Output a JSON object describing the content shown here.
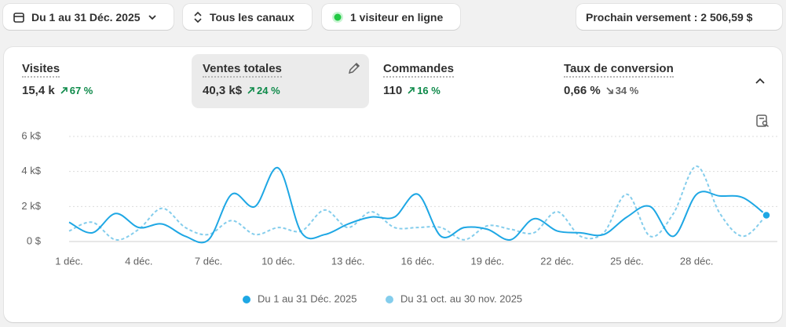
{
  "header": {
    "date_range": "Du 1 au 31 Déc. 2025",
    "channels": "Tous les canaux",
    "visitors": "1 visiteur en ligne",
    "payout": "Prochain versement : 2 506,59 $"
  },
  "metrics": [
    {
      "label": "Visites",
      "value": "15,4 k",
      "change": "67 %",
      "trend": "up"
    },
    {
      "label": "Ventes totales",
      "value": "40,3 k$",
      "change": "24 %",
      "trend": "up"
    },
    {
      "label": "Commandes",
      "value": "110",
      "change": "16 %",
      "trend": "up"
    },
    {
      "label": "Taux de conversion",
      "value": "0,66 %",
      "change": "34 %",
      "trend": "down"
    }
  ],
  "chart_data": {
    "type": "line",
    "categories": [
      "1 déc.",
      null,
      null,
      "4 déc.",
      null,
      null,
      "7 déc.",
      null,
      null,
      "10 déc.",
      null,
      null,
      "13 déc.",
      null,
      null,
      "16 déc.",
      null,
      null,
      "19 déc.",
      null,
      null,
      "22 déc.",
      null,
      null,
      "25 déc.",
      null,
      null,
      "28 déc.",
      null,
      null,
      null
    ],
    "series": [
      {
        "name": "Du 1 au 31 Déc. 2025",
        "color": "#1ea7e4",
        "style": "solid",
        "values": [
          1100,
          500,
          1600,
          800,
          1000,
          300,
          100,
          2700,
          2000,
          4200,
          500,
          400,
          1000,
          1400,
          1400,
          2700,
          300,
          800,
          700,
          100,
          1300,
          600,
          500,
          400,
          1400,
          2000,
          300,
          2700,
          2600,
          2500,
          1500
        ]
      },
      {
        "name": "Du 31 oct. au 30 nov. 2025",
        "color": "#84cdec",
        "style": "dashed",
        "values": [
          600,
          1100,
          100,
          700,
          1900,
          800,
          400,
          1200,
          400,
          800,
          600,
          1800,
          800,
          1700,
          800,
          800,
          800,
          100,
          900,
          700,
          500,
          1700,
          300,
          500,
          2700,
          300,
          1600,
          4300,
          1600,
          300,
          1500
        ]
      }
    ],
    "ylim": [
      0,
      6000
    ],
    "yticks": [
      {
        "value": 0,
        "label": "0 $"
      },
      {
        "value": 2000,
        "label": "2 k$"
      },
      {
        "value": 4000,
        "label": "4 k$"
      },
      {
        "value": 6000,
        "label": "6 k$"
      }
    ],
    "grid": true
  }
}
